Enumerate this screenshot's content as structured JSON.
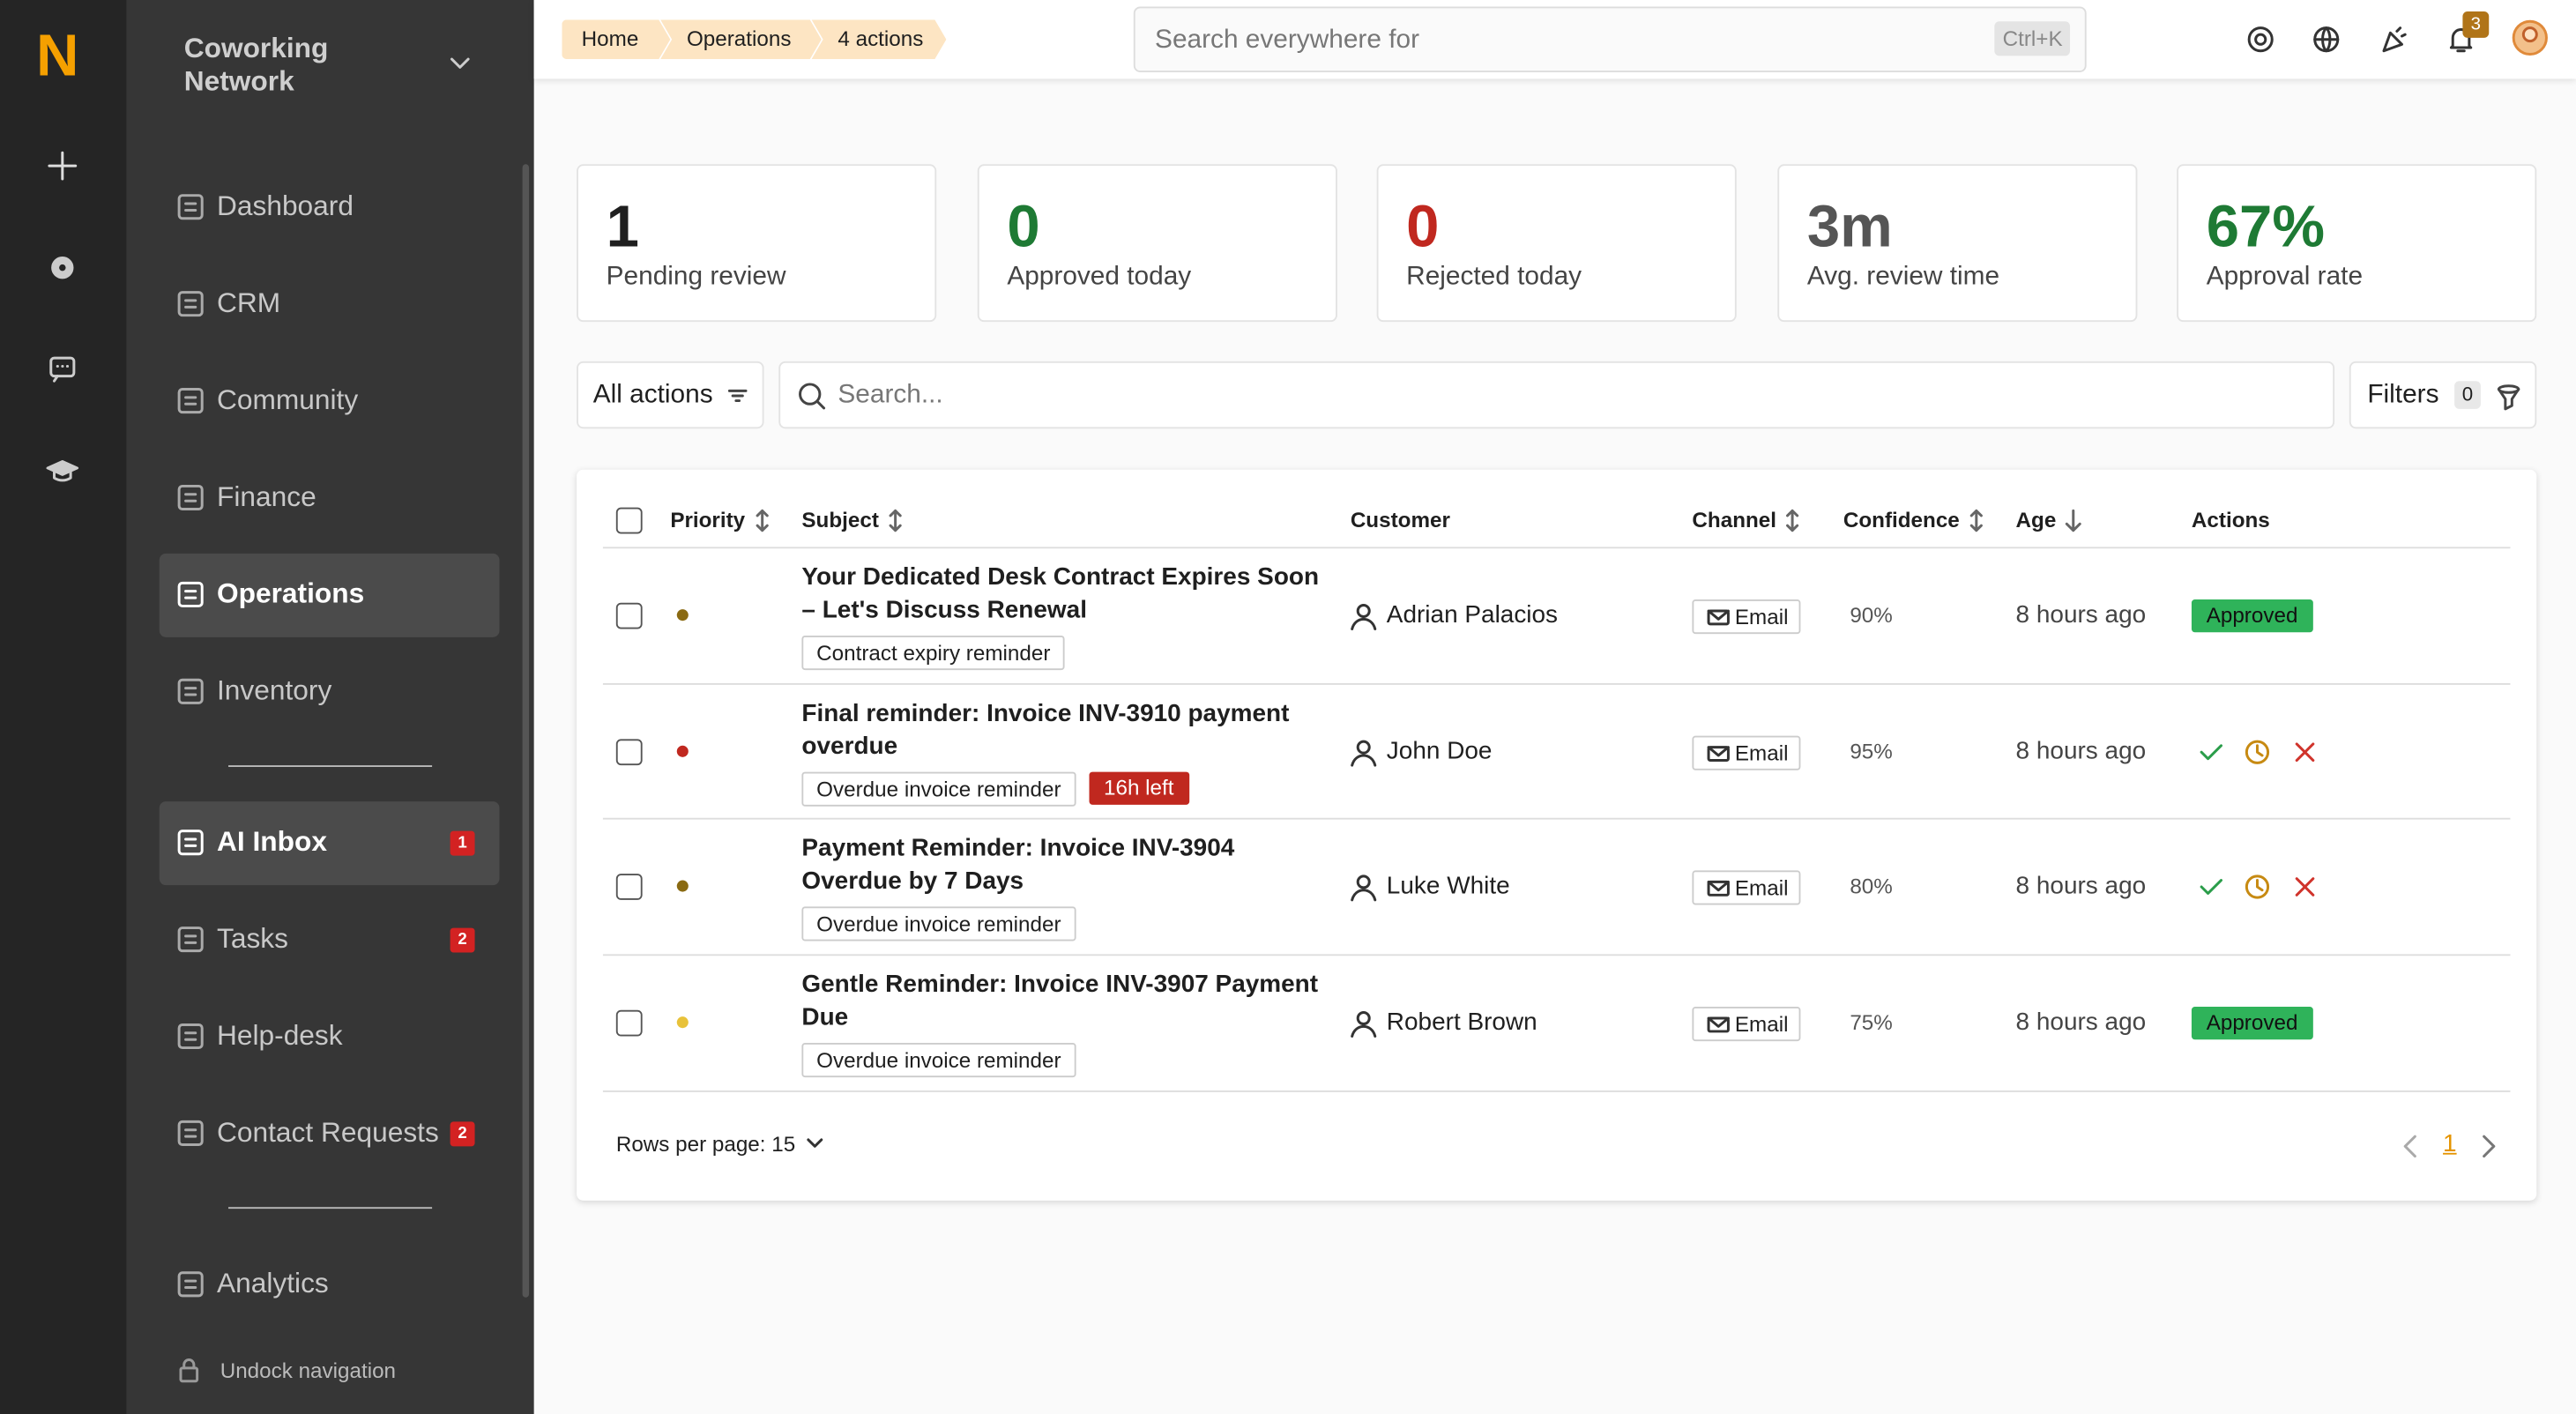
{
  "rail": {
    "logo": "N"
  },
  "sidebar": {
    "workspace": "Coworking Network",
    "nav": [
      [
        {
          "label": "Dashboard"
        },
        {
          "label": "CRM"
        },
        {
          "label": "Community"
        },
        {
          "label": "Finance"
        },
        {
          "label": "Operations",
          "active": true
        },
        {
          "label": "Inventory"
        }
      ],
      [
        {
          "label": "AI Inbox",
          "badge": "1",
          "active": true
        },
        {
          "label": "Tasks",
          "badge": "2"
        },
        {
          "label": "Help-desk"
        },
        {
          "label": "Contact Requests",
          "badge": "2"
        }
      ],
      [
        {
          "label": "Analytics"
        }
      ]
    ],
    "undock": "Undock navigation"
  },
  "header": {
    "breadcrumbs": [
      "Home",
      "Operations",
      "4 actions"
    ],
    "search_placeholder": "Search everywhere for",
    "shortcut": "Ctrl+K",
    "notifications": "3"
  },
  "stats": [
    {
      "value": "1",
      "label": "Pending review",
      "color": "#1f1f1f"
    },
    {
      "value": "0",
      "label": "Approved today",
      "color": "#1e7a34"
    },
    {
      "value": "0",
      "label": "Rejected today",
      "color": "#c0281f"
    },
    {
      "value": "3m",
      "label": "Avg. review time",
      "color": "#555555"
    },
    {
      "value": "67%",
      "label": "Approval rate",
      "color": "#1e7a34"
    }
  ],
  "toolbar": {
    "filter": "All actions",
    "search_placeholder": "Search...",
    "filters": "Filters",
    "filter_count": "0"
  },
  "table": {
    "columns": [
      {
        "label": "Priority",
        "sort": "both"
      },
      {
        "label": "Subject",
        "sort": "both"
      },
      {
        "label": "Customer"
      },
      {
        "label": "Channel",
        "sort": "both"
      },
      {
        "label": "Confidence",
        "sort": "both"
      },
      {
        "label": "Age",
        "sort": "desc"
      },
      {
        "label": "Actions"
      }
    ],
    "rows": [
      {
        "priority_color": "#8a6a12",
        "subject": "Your Dedicated Desk Contract Expires Soon – Let's Discuss Renewal",
        "tags": [
          "Contract expiry reminder"
        ],
        "customer": "Adrian Palacios",
        "channel": "Email",
        "confidence": "90%",
        "age": "8 hours ago",
        "status": "Approved"
      },
      {
        "priority_color": "#c0281f",
        "subject": "Final reminder: Invoice INV-3910 payment overdue",
        "tags": [
          "Overdue invoice reminder"
        ],
        "deadline": "16h left",
        "customer": "John Doe",
        "channel": "Email",
        "confidence": "95%",
        "age": "8 hours ago"
      },
      {
        "priority_color": "#8a6a12",
        "subject": "Payment Reminder: Invoice INV-3904 Overdue by 7 Days",
        "tags": [
          "Overdue invoice reminder"
        ],
        "customer": "Luke White",
        "channel": "Email",
        "confidence": "80%",
        "age": "8 hours ago"
      },
      {
        "priority_color": "#e8c23a",
        "subject": "Gentle Reminder: Invoice INV-3907 Payment Due",
        "tags": [
          "Overdue invoice reminder"
        ],
        "customer": "Robert Brown",
        "channel": "Email",
        "confidence": "75%",
        "age": "8 hours ago",
        "status": "Approved"
      }
    ]
  },
  "pagination": {
    "rows_per_page": "Rows per page: 15",
    "page": "1"
  }
}
